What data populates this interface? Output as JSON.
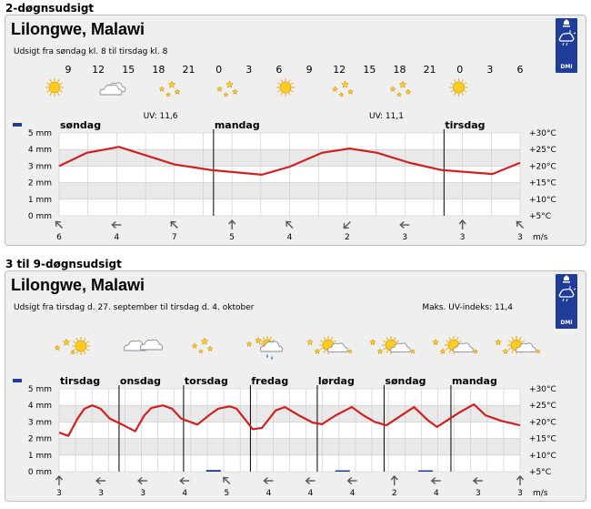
{
  "sections": [
    {
      "title": "2-døgnsudsigt",
      "city": "Lilongwe, Malawi",
      "subtitle": "Udsigt fra søndag kl. 8 til tirsdag kl. 8",
      "uv_max": "",
      "logo_text": "DMI",
      "chart_data": {
        "type": "line",
        "hours": [
          "9",
          "12",
          "15",
          "18",
          "21",
          "0",
          "3",
          "6",
          "9",
          "12",
          "15",
          "18",
          "21",
          "0",
          "3",
          "6"
        ],
        "icons": [
          "sun",
          "cloud",
          "moon-stars",
          "moon-stars",
          "sun",
          "moon-stars",
          "moon-stars",
          "sun"
        ],
        "uv_labels": [
          {
            "text": "UV: 11,6",
            "at": 0.22
          },
          {
            "text": "UV: 11,1",
            "at": 0.71
          }
        ],
        "days": [
          {
            "label": "søndag",
            "x": 0
          },
          {
            "label": "mandag",
            "x": 0.335
          },
          {
            "label": "tirsdag",
            "x": 0.835
          }
        ],
        "precip_labels": [
          "5 mm",
          "4 mm",
          "3 mm",
          "2 mm",
          "1 mm",
          "0 mm"
        ],
        "temp_labels": [
          "+30°C",
          "+25°C",
          "+20°C",
          "+15°C",
          "+10°C",
          "+5°C"
        ],
        "temp_range": [
          5,
          30
        ],
        "temperature": [
          [
            0,
            20
          ],
          [
            0.06,
            24
          ],
          [
            0.13,
            25.8
          ],
          [
            0.25,
            20.5
          ],
          [
            0.33,
            18.8
          ],
          [
            0.44,
            17.4
          ],
          [
            0.5,
            19.8
          ],
          [
            0.57,
            24
          ],
          [
            0.63,
            25.3
          ],
          [
            0.69,
            24
          ],
          [
            0.76,
            21
          ],
          [
            0.83,
            18.8
          ],
          [
            0.94,
            17.6
          ],
          [
            1.0,
            21
          ]
        ],
        "precipitation": [],
        "wind_speeds": [
          "6",
          "4",
          "7",
          "5",
          "4",
          "2",
          "3",
          "3",
          "3"
        ],
        "wind_dirs": [
          "arrow-nw",
          "arrow-w",
          "arrow-nw",
          "arrow-n",
          "arrow-nw",
          "arrow-sw",
          "arrow-w",
          "arrow-n",
          "arrow-nw"
        ],
        "wind_unit": "m/s"
      }
    },
    {
      "title": "3 til 9-døgnsudsigt",
      "city": "Lilongwe, Malawi",
      "subtitle": "Udsigt fra tirsdag d. 27. september til tirsdag d. 4. oktober",
      "uv_max": "Maks. UV-indeks: 11,4",
      "logo_text": "DMI",
      "chart_data": {
        "type": "line",
        "hours": [],
        "icons": [
          "moon-sun",
          "cloud-cloud",
          "moon-stars",
          "rain-cloud",
          "moon-cloud",
          "moon-cloud",
          "moon-cloud",
          "moon-cloud"
        ],
        "uv_labels": [],
        "days": [
          {
            "label": "tirsdag",
            "x": 0
          },
          {
            "label": "onsdag",
            "x": 0.13
          },
          {
            "label": "torsdag",
            "x": 0.27
          },
          {
            "label": "fredag",
            "x": 0.415
          },
          {
            "label": "lørdag",
            "x": 0.56
          },
          {
            "label": "søndag",
            "x": 0.705
          },
          {
            "label": "mandag",
            "x": 0.85
          }
        ],
        "precip_labels": [
          "5 mm",
          "4 mm",
          "3 mm",
          "2 mm",
          "1 mm",
          "0 mm"
        ],
        "temp_labels": [
          "+30°C",
          "+25°C",
          "+20°C",
          "+15°C",
          "+10°C",
          "+5°C"
        ],
        "temp_range": [
          5,
          30
        ],
        "temperature": [
          [
            0,
            16.8
          ],
          [
            0.02,
            15.8
          ],
          [
            0.04,
            21
          ],
          [
            0.055,
            24
          ],
          [
            0.072,
            25
          ],
          [
            0.09,
            24
          ],
          [
            0.11,
            21
          ],
          [
            0.14,
            19
          ],
          [
            0.165,
            17.2
          ],
          [
            0.185,
            22
          ],
          [
            0.2,
            24.2
          ],
          [
            0.225,
            25
          ],
          [
            0.245,
            24
          ],
          [
            0.265,
            21
          ],
          [
            0.3,
            19.2
          ],
          [
            0.325,
            22
          ],
          [
            0.345,
            24
          ],
          [
            0.37,
            24.7
          ],
          [
            0.385,
            24
          ],
          [
            0.405,
            20.5
          ],
          [
            0.42,
            17.8
          ],
          [
            0.44,
            18.2
          ],
          [
            0.47,
            23.5
          ],
          [
            0.49,
            24.5
          ],
          [
            0.52,
            22
          ],
          [
            0.55,
            19.8
          ],
          [
            0.57,
            19.3
          ],
          [
            0.6,
            22
          ],
          [
            0.635,
            24.5
          ],
          [
            0.66,
            22
          ],
          [
            0.685,
            20
          ],
          [
            0.71,
            19
          ],
          [
            0.77,
            24.5
          ],
          [
            0.8,
            20.5
          ],
          [
            0.82,
            18.5
          ],
          [
            0.87,
            23
          ],
          [
            0.9,
            25.3
          ],
          [
            0.925,
            22
          ],
          [
            0.96,
            20.3
          ],
          [
            1.0,
            19
          ]
        ],
        "precipitation": [
          [
            0.335,
            0.1
          ],
          [
            0.615,
            0.05
          ],
          [
            0.795,
            0.05
          ]
        ],
        "wind_speeds": [
          "3",
          "3",
          "3",
          "4",
          "5",
          "4",
          "4",
          "4",
          "2",
          "4",
          "3",
          "3"
        ],
        "wind_dirs": [
          "arrow-n",
          "arrow-w",
          "arrow-w",
          "arrow-w",
          "arrow-nw",
          "arrow-w",
          "arrow-w",
          "arrow-w",
          "arrow-n",
          "arrow-w",
          "arrow-w",
          "arrow-n"
        ],
        "wind_unit": "m/s"
      }
    }
  ]
}
